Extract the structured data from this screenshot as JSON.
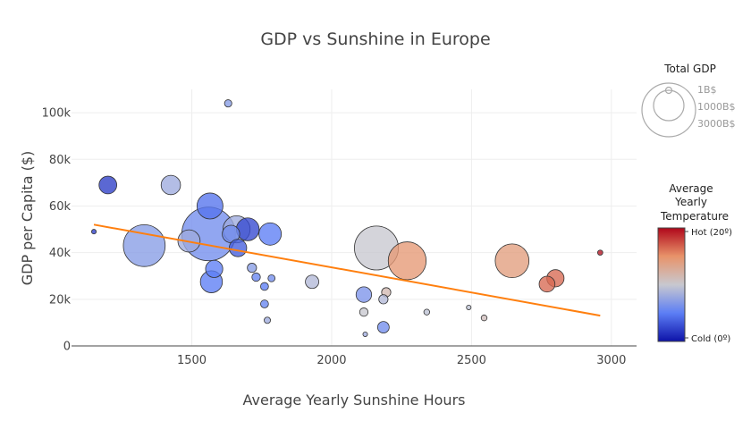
{
  "chart_data": {
    "type": "scatter",
    "title": "GDP vs Sunshine in Europe",
    "xlabel": "Average Yearly Sunshine Hours",
    "ylabel": "GDP per Capita ($)",
    "xlim": [
      1070,
      3090
    ],
    "ylim": [
      0,
      110000
    ],
    "x_ticks": [
      1500,
      2000,
      2500,
      3000
    ],
    "x_tick_labels": [
      "1500",
      "2000",
      "2500",
      "3000"
    ],
    "y_ticks": [
      0,
      20000,
      40000,
      60000,
      80000,
      100000
    ],
    "y_tick_labels": [
      "0",
      "20k",
      "40k",
      "60k",
      "80k",
      "100k"
    ],
    "grid": true,
    "trendline": {
      "x": [
        1150,
        2960
      ],
      "y": [
        52000,
        13000
      ],
      "color": "#ff7f0e"
    },
    "color_scale": {
      "title_lines": [
        "Average",
        "Yearly",
        "Temperature"
      ],
      "min_label": "Cold (0º)",
      "max_label": "Hot (20º)",
      "min": 0,
      "max": 20,
      "colors": [
        "#0d12a8",
        "#5c7ef5",
        "#c8c8cf",
        "#e8936a",
        "#b0071b"
      ]
    },
    "size_legend": {
      "title": "Total GDP",
      "labels": [
        "1B$",
        "1000B$",
        "3000B$"
      ]
    },
    "points": [
      {
        "x": 1630,
        "y": 104000,
        "temp": 7,
        "gdp": 60
      },
      {
        "x": 1200,
        "y": 69000,
        "temp": 2,
        "gdp": 350
      },
      {
        "x": 1425,
        "y": 69000,
        "temp": 8,
        "gdp": 420
      },
      {
        "x": 1150,
        "y": 49000,
        "temp": 2,
        "gdp": 20
      },
      {
        "x": 1330,
        "y": 43000,
        "temp": 7,
        "gdp": 1950
      },
      {
        "x": 1490,
        "y": 45000,
        "temp": 8,
        "gdp": 550
      },
      {
        "x": 1565,
        "y": 60000,
        "temp": 4.5,
        "gdp": 750
      },
      {
        "x": 1560,
        "y": 48000,
        "temp": 6,
        "gdp": 3200
      },
      {
        "x": 1660,
        "y": 50000,
        "temp": 8,
        "gdp": 820
      },
      {
        "x": 1640,
        "y": 48000,
        "temp": 6,
        "gdp": 340
      },
      {
        "x": 1700,
        "y": 50000,
        "temp": 2.5,
        "gdp": 580
      },
      {
        "x": 1665,
        "y": 42000,
        "temp": 3.5,
        "gdp": 340
      },
      {
        "x": 1780,
        "y": 48000,
        "temp": 5,
        "gdp": 560
      },
      {
        "x": 1580,
        "y": 33000,
        "temp": 5,
        "gdp": 330
      },
      {
        "x": 1570,
        "y": 27500,
        "temp": 5,
        "gdp": 540
      },
      {
        "x": 1715,
        "y": 33500,
        "temp": 7,
        "gdp": 95
      },
      {
        "x": 1730,
        "y": 29500,
        "temp": 5.5,
        "gdp": 80
      },
      {
        "x": 1785,
        "y": 29000,
        "temp": 6,
        "gdp": 55
      },
      {
        "x": 1760,
        "y": 25500,
        "temp": 5,
        "gdp": 70
      },
      {
        "x": 1760,
        "y": 18000,
        "temp": 5.5,
        "gdp": 70
      },
      {
        "x": 1770,
        "y": 11000,
        "temp": 8,
        "gdp": 45
      },
      {
        "x": 1930,
        "y": 27500,
        "temp": 9,
        "gdp": 200
      },
      {
        "x": 2160,
        "y": 42000,
        "temp": 10,
        "gdp": 2150
      },
      {
        "x": 2270,
        "y": 36500,
        "temp": 14.5,
        "gdp": 1600
      },
      {
        "x": 2115,
        "y": 22000,
        "temp": 6.5,
        "gdp": 270
      },
      {
        "x": 2195,
        "y": 23000,
        "temp": 11.5,
        "gdp": 95
      },
      {
        "x": 2185,
        "y": 20000,
        "temp": 9,
        "gdp": 95
      },
      {
        "x": 2115,
        "y": 14500,
        "temp": 10,
        "gdp": 80
      },
      {
        "x": 2340,
        "y": 14500,
        "temp": 9.5,
        "gdp": 38
      },
      {
        "x": 2120,
        "y": 5000,
        "temp": 8,
        "gdp": 18
      },
      {
        "x": 2185,
        "y": 8000,
        "temp": 6,
        "gdp": 150
      },
      {
        "x": 2490,
        "y": 16500,
        "temp": 9.5,
        "gdp": 12
      },
      {
        "x": 2545,
        "y": 12000,
        "temp": 11,
        "gdp": 38
      },
      {
        "x": 2645,
        "y": 36500,
        "temp": 14,
        "gdp": 1270
      },
      {
        "x": 2770,
        "y": 26500,
        "temp": 16.5,
        "gdp": 280
      },
      {
        "x": 2800,
        "y": 29000,
        "temp": 16.5,
        "gdp": 330
      },
      {
        "x": 2960,
        "y": 40000,
        "temp": 19.5,
        "gdp": 30
      }
    ]
  }
}
